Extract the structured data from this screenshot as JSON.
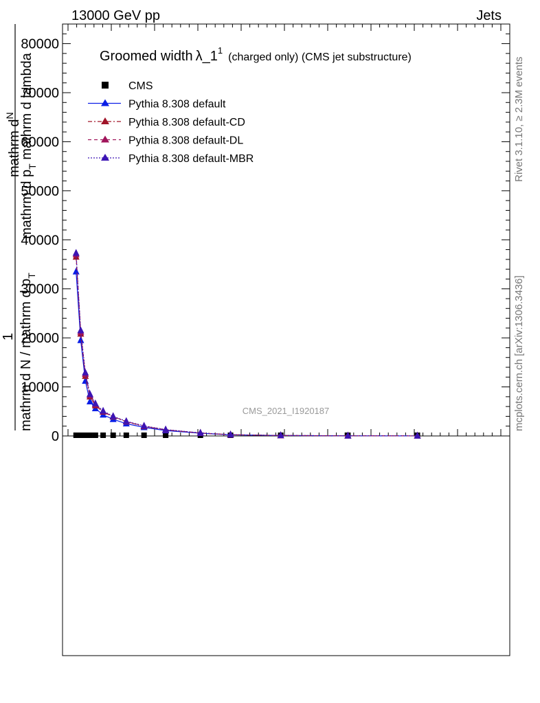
{
  "header": {
    "energy_label": "13000 GeV pp",
    "process_label": "Jets"
  },
  "side_labels": {
    "rivet": "Rivet 3.1.10, ≥ 2.3M events",
    "mcplots": "mcplots.cern.ch [arXiv:1306.3436]"
  },
  "watermark": "CMS_2021_I1920187",
  "ylabel": {
    "numerator_line1": "mathrm d",
    "numerator_N": "N",
    "numerator_line2": "mathrm d p",
    "numerator_T": "T",
    "numerator_line3": " mathrm d lambda",
    "one": "1",
    "denominator": "mathrm d N / mathrm d p",
    "denominator_T": "T"
  },
  "chart_data": {
    "type": "line",
    "title": "Groomed width",
    "title_symbol": "λ_1",
    "title_sup": "1",
    "title_suffix": "(charged only) (CMS jet substructure)",
    "ylim": [
      0,
      80000
    ],
    "xlim": [
      0,
      0.5
    ],
    "yticks": [
      0,
      10000,
      20000,
      30000,
      40000,
      50000,
      60000,
      70000,
      80000
    ],
    "ytick_labels": [
      "0",
      "10000",
      "20000",
      "30000",
      "40000",
      "50000",
      "60000",
      "70000",
      "80000"
    ],
    "x": [
      0.006,
      0.012,
      0.018,
      0.024,
      0.031,
      0.041,
      0.054,
      0.071,
      0.094,
      0.122,
      0.167,
      0.206,
      0.271,
      0.358,
      0.448
    ],
    "series": [
      {
        "name": "CMS",
        "color": "#000000",
        "marker": "square",
        "line": "none",
        "values": [
          0,
          0,
          0,
          0,
          0,
          0,
          0,
          0,
          0,
          0,
          0,
          0,
          0,
          0,
          0
        ]
      },
      {
        "name": "Pythia 8.308 default",
        "color": "#0a1ee6",
        "marker": "triangle",
        "line": "solid",
        "values": [
          33500,
          19500,
          11200,
          7000,
          5600,
          4300,
          3400,
          2500,
          1750,
          1100,
          550,
          230,
          90,
          30,
          10
        ]
      },
      {
        "name": "Pythia 8.308 default-CD",
        "color": "#a01428",
        "marker": "triangle",
        "line": "dashdot",
        "values": [
          36500,
          20800,
          12200,
          8000,
          6200,
          4900,
          3900,
          2900,
          1950,
          1250,
          600,
          250,
          95,
          30,
          10
        ]
      },
      {
        "name": "Pythia 8.308 default-DL",
        "color": "#a0145a",
        "marker": "triangle",
        "line": "dashed",
        "values": [
          37000,
          21200,
          12600,
          8300,
          6400,
          5000,
          3950,
          2950,
          2000,
          1250,
          600,
          250,
          95,
          30,
          10
        ]
      },
      {
        "name": "Pythia 8.308 default-MBR",
        "color": "#3c14b4",
        "marker": "triangle",
        "line": "dotted",
        "values": [
          37300,
          21500,
          12900,
          8500,
          6600,
          5100,
          4000,
          3000,
          2050,
          1300,
          620,
          260,
          100,
          30,
          10
        ]
      }
    ],
    "legend_placement": "top-left"
  }
}
